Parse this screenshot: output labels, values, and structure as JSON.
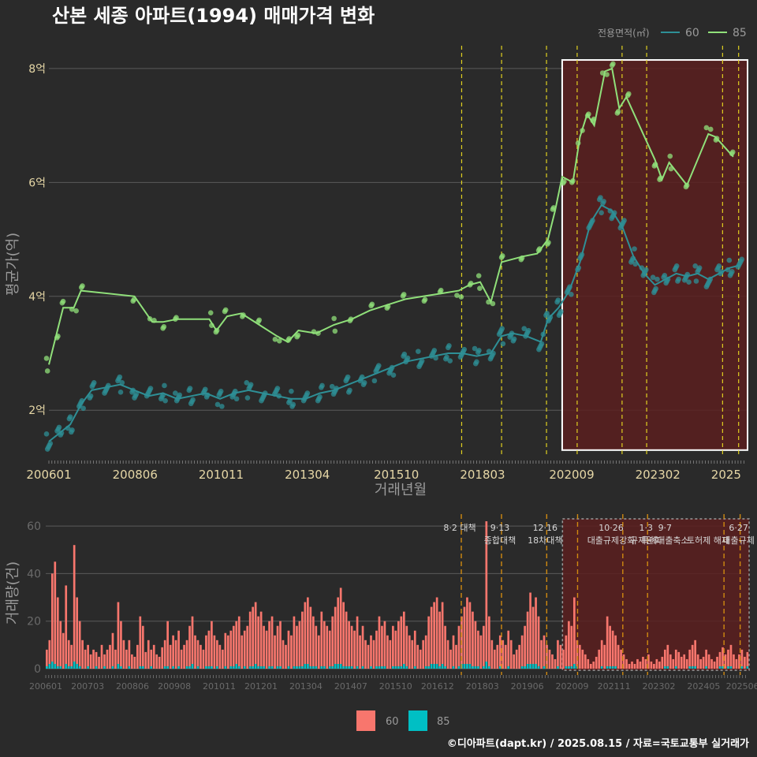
{
  "title": "산본 세종 아파트(1994) 매매가격 변화",
  "footer": "©디아파트(dapt.kr) / 2025.08.15 / 자료=국토교통부 실거래가",
  "colors": {
    "bg": "#2a2a2a",
    "grid": "#5a5a5a",
    "s60_line": "#2e8f96",
    "s85_line": "#90e07a",
    "bar60": "#f8766d",
    "bar85": "#00bfc4",
    "vline": "#e0d020",
    "vline_bottom": "#d08a10",
    "highlight_fill": "#5a1e1e",
    "highlight_stroke": "#ffffff",
    "axis_text": "#e6d7a6",
    "axis_title": "#9a9a9a"
  },
  "chart_data": [
    {
      "type": "line",
      "xlabel": "거래년월",
      "ylabel": "평균가(억)",
      "legend_title": "전용면적(㎡)",
      "legend_position": "top-right",
      "x_ticks": [
        "200601",
        "200806",
        "201011",
        "201304",
        "201510",
        "201803",
        "202009",
        "202302",
        "2025"
      ],
      "y_ticks": [
        "2억",
        "4억",
        "6억",
        "8억"
      ],
      "y_tick_values": [
        2,
        4,
        6,
        8
      ],
      "ylim": [
        1.2,
        8.4
      ],
      "xlim": [
        2006.0,
        2025.6
      ],
      "highlight_range": [
        2020.4,
        2025.6
      ],
      "highlight_y": [
        1.3,
        8.15
      ],
      "policy_lines": [
        2017.58,
        2018.7,
        2019.96,
        2020.82,
        2022.08,
        2022.77,
        2024.9,
        2025.35
      ],
      "series": [
        {
          "name": "60",
          "points": [
            [
              2006.0,
              1.45
            ],
            [
              2006.3,
              1.6
            ],
            [
              2006.6,
              1.75
            ],
            [
              2006.9,
              2.1
            ],
            [
              2007.2,
              2.35
            ],
            [
              2007.6,
              2.4
            ],
            [
              2008.0,
              2.45
            ],
            [
              2008.4,
              2.35
            ],
            [
              2008.8,
              2.25
            ],
            [
              2009.2,
              2.3
            ],
            [
              2009.6,
              2.2
            ],
            [
              2010.0,
              2.25
            ],
            [
              2010.4,
              2.3
            ],
            [
              2010.8,
              2.2
            ],
            [
              2011.2,
              2.3
            ],
            [
              2011.6,
              2.35
            ],
            [
              2012.0,
              2.3
            ],
            [
              2012.4,
              2.25
            ],
            [
              2012.8,
              2.2
            ],
            [
              2013.2,
              2.2
            ],
            [
              2013.6,
              2.3
            ],
            [
              2014.0,
              2.35
            ],
            [
              2014.4,
              2.45
            ],
            [
              2014.8,
              2.55
            ],
            [
              2015.2,
              2.65
            ],
            [
              2015.6,
              2.75
            ],
            [
              2016.0,
              2.85
            ],
            [
              2016.4,
              2.9
            ],
            [
              2016.8,
              2.95
            ],
            [
              2017.2,
              3.0
            ],
            [
              2017.6,
              3.0
            ],
            [
              2018.0,
              2.95
            ],
            [
              2018.4,
              3.0
            ],
            [
              2018.7,
              3.3
            ],
            [
              2019.0,
              3.35
            ],
            [
              2019.4,
              3.3
            ],
            [
              2019.8,
              3.2
            ],
            [
              2020.0,
              3.6
            ],
            [
              2020.3,
              3.8
            ],
            [
              2020.6,
              4.1
            ],
            [
              2020.9,
              4.6
            ],
            [
              2021.2,
              5.3
            ],
            [
              2021.5,
              5.6
            ],
            [
              2021.8,
              5.5
            ],
            [
              2022.1,
              5.2
            ],
            [
              2022.4,
              4.7
            ],
            [
              2022.7,
              4.4
            ],
            [
              2023.0,
              4.2
            ],
            [
              2023.3,
              4.3
            ],
            [
              2023.6,
              4.4
            ],
            [
              2023.9,
              4.35
            ],
            [
              2024.2,
              4.4
            ],
            [
              2024.5,
              4.3
            ],
            [
              2024.8,
              4.4
            ],
            [
              2025.1,
              4.5
            ],
            [
              2025.4,
              4.55
            ]
          ]
        },
        {
          "name": "85",
          "points": [
            [
              2006.0,
              2.8
            ],
            [
              2006.2,
              3.3
            ],
            [
              2006.4,
              3.8
            ],
            [
              2006.7,
              3.8
            ],
            [
              2006.9,
              4.1
            ],
            [
              2008.4,
              4.0
            ],
            [
              2008.9,
              3.55
            ],
            [
              2009.2,
              3.55
            ],
            [
              2009.6,
              3.6
            ],
            [
              2010.5,
              3.6
            ],
            [
              2010.7,
              3.4
            ],
            [
              2011.0,
              3.65
            ],
            [
              2011.4,
              3.7
            ],
            [
              2011.9,
              3.5
            ],
            [
              2012.4,
              3.3
            ],
            [
              2012.7,
              3.2
            ],
            [
              2013.0,
              3.4
            ],
            [
              2013.5,
              3.35
            ],
            [
              2014.0,
              3.5
            ],
            [
              2014.5,
              3.6
            ],
            [
              2015.0,
              3.75
            ],
            [
              2015.5,
              3.85
            ],
            [
              2016.0,
              3.95
            ],
            [
              2016.5,
              4.0
            ],
            [
              2017.0,
              4.05
            ],
            [
              2017.5,
              4.1
            ],
            [
              2017.8,
              4.2
            ],
            [
              2018.1,
              4.25
            ],
            [
              2018.4,
              3.9
            ],
            [
              2018.7,
              4.6
            ],
            [
              2019.3,
              4.7
            ],
            [
              2019.7,
              4.75
            ],
            [
              2020.0,
              5.0
            ],
            [
              2020.2,
              5.5
            ],
            [
              2020.4,
              6.1
            ],
            [
              2020.7,
              6.0
            ],
            [
              2020.9,
              6.8
            ],
            [
              2021.1,
              7.2
            ],
            [
              2021.3,
              7.0
            ],
            [
              2021.6,
              7.95
            ],
            [
              2021.8,
              8.0
            ],
            [
              2022.0,
              7.3
            ],
            [
              2022.2,
              7.5
            ],
            [
              2023.0,
              6.4
            ],
            [
              2023.2,
              6.05
            ],
            [
              2023.4,
              6.35
            ],
            [
              2023.9,
              5.95
            ],
            [
              2024.5,
              6.85
            ],
            [
              2024.7,
              6.8
            ],
            [
              2025.2,
              6.45
            ]
          ]
        }
      ]
    },
    {
      "type": "bar",
      "xlabel": "",
      "ylabel": "거래량(건)",
      "ylim": [
        0,
        65
      ],
      "y_ticks": [
        "0",
        "20",
        "40",
        "60"
      ],
      "y_tick_values": [
        0,
        20,
        40,
        60
      ],
      "x_ticks": [
        "200601",
        "200703",
        "200806",
        "200908",
        "201011",
        "201201",
        "201304",
        "201407",
        "201510",
        "201612",
        "201803",
        "201906",
        "202009",
        "202111",
        "202302",
        "202405",
        "202506"
      ],
      "highlight_range": [
        2020.4,
        2025.6
      ],
      "policy_lines": [
        2017.58,
        2018.7,
        2019.96,
        2020.82,
        2022.08,
        2022.77,
        2024.9,
        2025.35
      ],
      "annotations": [
        {
          "x": 2017.58,
          "lines": [
            "8·2 대책"
          ]
        },
        {
          "x": 2018.7,
          "lines": [
            "9·13",
            "종합대책"
          ]
        },
        {
          "x": 2019.96,
          "lines": [
            "12·16",
            "18차대책"
          ]
        },
        {
          "x": 2021.8,
          "lines": [
            "10·26",
            "대출규제강화"
          ]
        },
        {
          "x": 2022.77,
          "lines": [
            "1·3",
            "규제완화"
          ]
        },
        {
          "x": 2023.3,
          "lines": [
            "9·7",
            "특례대출축소"
          ]
        },
        {
          "x": 2024.5,
          "lines": [
            "",
            "토허제 해제"
          ]
        },
        {
          "x": 2025.35,
          "lines": [
            "6·27",
            "대출규제"
          ]
        }
      ],
      "legend": [
        "60",
        "85"
      ],
      "series": [
        {
          "name": "60",
          "values": [
            8,
            12,
            40,
            45,
            30,
            20,
            15,
            35,
            12,
            10,
            52,
            30,
            20,
            12,
            8,
            10,
            6,
            8,
            7,
            5,
            10,
            6,
            8,
            10,
            15,
            8,
            28,
            20,
            12,
            8,
            12,
            6,
            5,
            10,
            22,
            18,
            7,
            12,
            8,
            10,
            6,
            5,
            9,
            12,
            20,
            10,
            14,
            12,
            16,
            8,
            10,
            12,
            18,
            22,
            14,
            12,
            10,
            8,
            14,
            16,
            20,
            14,
            12,
            10,
            8,
            15,
            14,
            16,
            18,
            20,
            22,
            14,
            16,
            18,
            24,
            26,
            28,
            22,
            24,
            18,
            16,
            20,
            22,
            14,
            18,
            20,
            12,
            10,
            16,
            14,
            22,
            18,
            20,
            24,
            28,
            30,
            26,
            22,
            18,
            14,
            24,
            20,
            18,
            16,
            22,
            26,
            30,
            34,
            28,
            24,
            20,
            18,
            16,
            22,
            14,
            18,
            12,
            10,
            14,
            12,
            16,
            22,
            18,
            20,
            14,
            12,
            18,
            16,
            20,
            22,
            24,
            18,
            14,
            12,
            16,
            10,
            8,
            12,
            14,
            22,
            26,
            28,
            30,
            24,
            28,
            18,
            12,
            8,
            14,
            10,
            18,
            22,
            26,
            30,
            28,
            24,
            20,
            16,
            14,
            18,
            62,
            22,
            12,
            8,
            10,
            14,
            12,
            10,
            16,
            12,
            6,
            8,
            10,
            14,
            18,
            24,
            32,
            26,
            30,
            22,
            12,
            14,
            10,
            8,
            6,
            4,
            12,
            10,
            8,
            14,
            20,
            18,
            30,
            12,
            10,
            8,
            6,
            4,
            2,
            3,
            5,
            8,
            12,
            10,
            22,
            18,
            16,
            14,
            10,
            8,
            6,
            4,
            2,
            3,
            2,
            4,
            3,
            5,
            4,
            6,
            3,
            2,
            4,
            3,
            5,
            8,
            10,
            6,
            4,
            8,
            7,
            5,
            6,
            4,
            8,
            10,
            12,
            6,
            4,
            5,
            8,
            6,
            4,
            3,
            5,
            7,
            9,
            6,
            8,
            10,
            6,
            4,
            6,
            8,
            5,
            7
          ]
        },
        {
          "name": "85",
          "values": [
            1,
            2,
            3,
            2,
            1,
            1,
            0,
            2,
            1,
            1,
            3,
            2,
            1,
            0,
            0,
            1,
            0,
            0,
            1,
            0,
            0,
            1,
            0,
            0,
            1,
            0,
            2,
            1,
            0,
            0,
            1,
            0,
            0,
            0,
            1,
            1,
            0,
            0,
            1,
            0,
            0,
            0,
            0,
            1,
            1,
            0,
            1,
            0,
            1,
            0,
            0,
            1,
            1,
            2,
            0,
            1,
            0,
            0,
            1,
            1,
            1,
            0,
            1,
            0,
            0,
            1,
            0,
            1,
            1,
            2,
            1,
            0,
            1,
            0,
            1,
            1,
            2,
            1,
            1,
            1,
            0,
            1,
            1,
            0,
            1,
            1,
            0,
            0,
            1,
            0,
            1,
            1,
            1,
            1,
            2,
            2,
            1,
            1,
            1,
            0,
            1,
            1,
            0,
            1,
            1,
            2,
            2,
            2,
            1,
            1,
            1,
            1,
            0,
            1,
            0,
            1,
            0,
            0,
            1,
            0,
            1,
            1,
            1,
            1,
            0,
            0,
            1,
            1,
            1,
            1,
            2,
            1,
            0,
            0,
            1,
            0,
            0,
            0,
            1,
            1,
            2,
            2,
            2,
            1,
            2,
            1,
            0,
            0,
            1,
            0,
            1,
            2,
            2,
            2,
            2,
            1,
            1,
            1,
            0,
            1,
            3,
            1,
            0,
            0,
            0,
            1,
            0,
            0,
            1,
            0,
            0,
            0,
            0,
            1,
            1,
            2,
            2,
            2,
            2,
            1,
            0,
            1,
            0,
            0,
            0,
            0,
            1,
            0,
            0,
            1,
            1,
            1,
            2,
            1,
            0,
            0,
            0,
            0,
            0,
            0,
            0,
            0,
            1,
            0,
            1,
            1,
            1,
            1,
            0,
            0,
            0,
            0,
            0,
            0,
            0,
            0,
            0,
            0,
            0,
            0,
            0,
            0,
            0,
            0,
            0,
            1,
            1,
            0,
            0,
            1,
            0,
            0,
            0,
            0,
            1,
            1,
            1,
            0,
            0,
            0,
            1,
            0,
            0,
            0,
            0,
            1,
            1,
            0,
            1,
            1,
            0,
            0,
            0,
            1,
            0,
            1
          ]
        }
      ]
    }
  ]
}
